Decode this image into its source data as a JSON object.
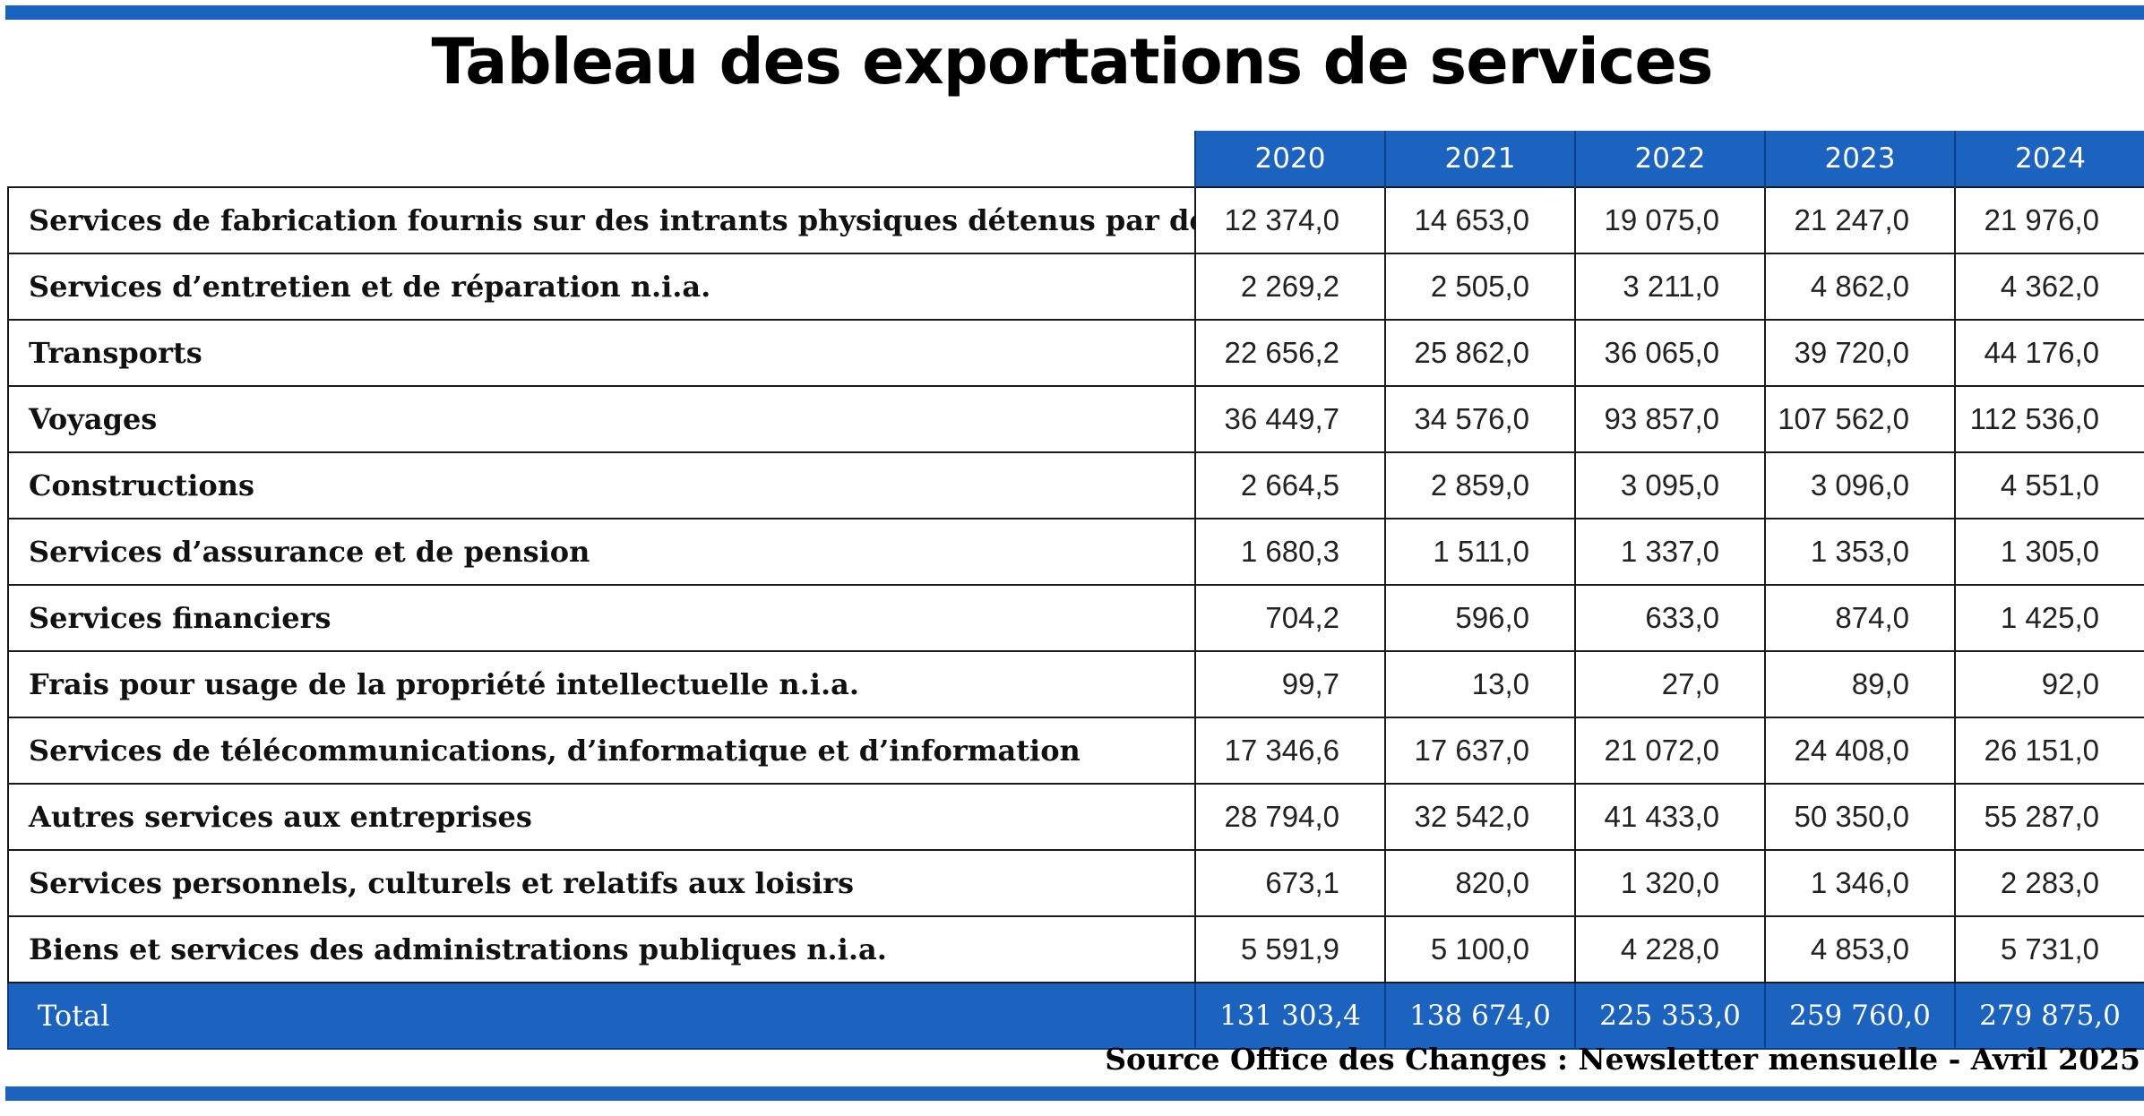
{
  "title": "Tableau des exportations de services",
  "source": "Source Office des Changes : Newsletter mensuelle - Avril 2025",
  "colors": {
    "accent": "#1c63c0",
    "text": "#111111",
    "background": "#ffffff"
  },
  "chart_data": {
    "type": "table",
    "title": "Tableau des exportations de services",
    "columns": [
      "2020",
      "2021",
      "2022",
      "2023",
      "2024"
    ],
    "rows": [
      {
        "label": "Services de fabrication fournis sur des intrants physiques  détenus par des tiers",
        "values": [
          "12 374,0",
          "14 653,0",
          "19 075,0",
          "21 247,0",
          "21 976,0"
        ]
      },
      {
        "label": "Services d’entretien et de réparation n.i.a.",
        "values": [
          "2 269,2",
          "2 505,0",
          "3 211,0",
          "4 862,0",
          "4 362,0"
        ]
      },
      {
        "label": "Transports",
        "values": [
          "22 656,2",
          "25 862,0",
          "36 065,0",
          "39 720,0",
          "44 176,0"
        ]
      },
      {
        "label": "Voyages",
        "values": [
          "36 449,7",
          "34 576,0",
          "93 857,0",
          "107 562,0",
          "112 536,0"
        ]
      },
      {
        "label": "Constructions",
        "values": [
          "2 664,5",
          "2 859,0",
          "3 095,0",
          "3 096,0",
          "4 551,0"
        ]
      },
      {
        "label": "Services d’assurance et de pension",
        "values": [
          "1 680,3",
          "1 511,0",
          "1 337,0",
          "1 353,0",
          "1 305,0"
        ]
      },
      {
        "label": "Services financiers",
        "values": [
          "704,2",
          "596,0",
          "633,0",
          "874,0",
          "1 425,0"
        ]
      },
      {
        "label": "Frais pour usage de la propriété intellectuelle n.i.a.",
        "values": [
          "99,7",
          "13,0",
          "27,0",
          "89,0",
          "92,0"
        ]
      },
      {
        "label": "Services de télécommunications, d’informatique et d’information",
        "values": [
          "17 346,6",
          "17 637,0",
          "21 072,0",
          "24 408,0",
          "26 151,0"
        ]
      },
      {
        "label": "Autres services aux entreprises",
        "values": [
          "28 794,0",
          "32 542,0",
          "41 433,0",
          "50 350,0",
          "55 287,0"
        ]
      },
      {
        "label": "Services personnels, culturels et relatifs aux loisirs",
        "values": [
          "673,1",
          "820,0",
          "1 320,0",
          "1 346,0",
          "2 283,0"
        ]
      },
      {
        "label": "Biens et services des administrations publiques n.i.a.",
        "values": [
          "5 591,9",
          "5 100,0",
          "4 228,0",
          "4 853,0",
          "5 731,0"
        ]
      }
    ],
    "total": {
      "label": "Total",
      "values": [
        "131 303,4",
        "138 674,0",
        "225 353,0",
        "259 760,0",
        "279 875,0"
      ]
    }
  }
}
